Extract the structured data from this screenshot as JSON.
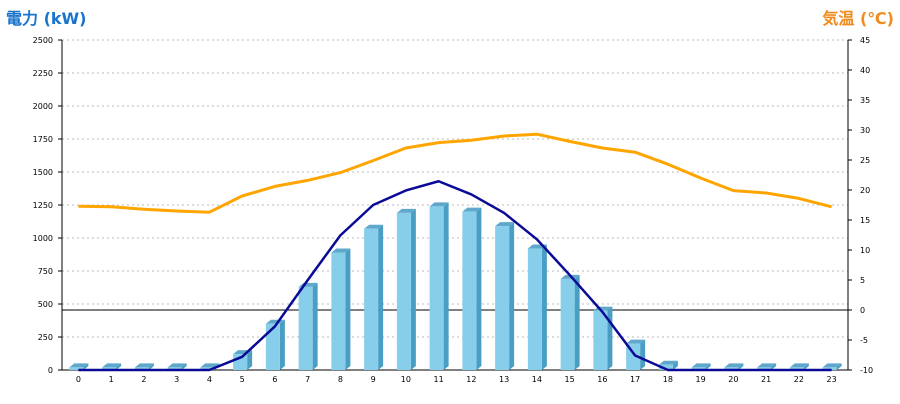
{
  "colors": {
    "power_title": "#1874cd",
    "temp_title": "#f08c1e",
    "bar_front": "#87ceeb",
    "bar_side": "#4a9ec4",
    "bar_top": "#5fa8cc",
    "power_line": "#0a0a96",
    "temp_line": "#ffa500",
    "grid": "#bbbbbb",
    "axis": "#000000"
  },
  "chart_data": {
    "type": "bar",
    "title_left": "電力 (kW)",
    "title_right": "気温 (℃)",
    "categories": [
      "0",
      "1",
      "2",
      "3",
      "4",
      "5",
      "6",
      "7",
      "8",
      "9",
      "10",
      "11",
      "12",
      "13",
      "14",
      "15",
      "16",
      "17",
      "18",
      "19",
      "20",
      "21",
      "22",
      "23"
    ],
    "y_left": {
      "min": 0,
      "max": 2500,
      "ticks": [
        "0",
        "250",
        "500",
        "750",
        "1000",
        "1250",
        "1500",
        "1750",
        "2000",
        "2250",
        "2500"
      ]
    },
    "y_right": {
      "min": -10,
      "max": 45,
      "ticks": [
        "-10",
        "-5",
        "0",
        "5",
        "10",
        "15",
        "20",
        "25",
        "30",
        "35",
        "40",
        "45"
      ]
    },
    "grid": true,
    "series": [
      {
        "kind": "bar",
        "axis": "left",
        "values": [
          20,
          20,
          20,
          20,
          20,
          120,
          350,
          630,
          890,
          1070,
          1190,
          1240,
          1200,
          1090,
          920,
          690,
          450,
          200,
          40,
          20,
          20,
          20,
          20,
          20
        ]
      },
      {
        "kind": "line",
        "axis": "left",
        "values": [
          0,
          0,
          0,
          0,
          0,
          100,
          330,
          680,
          1020,
          1250,
          1360,
          1430,
          1330,
          1190,
          990,
          720,
          440,
          110,
          0,
          0,
          0,
          0,
          0,
          0
        ]
      },
      {
        "kind": "line",
        "axis": "right",
        "values": [
          17.3,
          17.2,
          16.8,
          16.5,
          16.3,
          19.0,
          20.6,
          21.6,
          22.9,
          24.9,
          27.0,
          27.9,
          28.3,
          29.0,
          29.3,
          28.1,
          27.0,
          26.3,
          24.3,
          22.0,
          19.9,
          19.5,
          18.6,
          17.2
        ]
      }
    ]
  }
}
